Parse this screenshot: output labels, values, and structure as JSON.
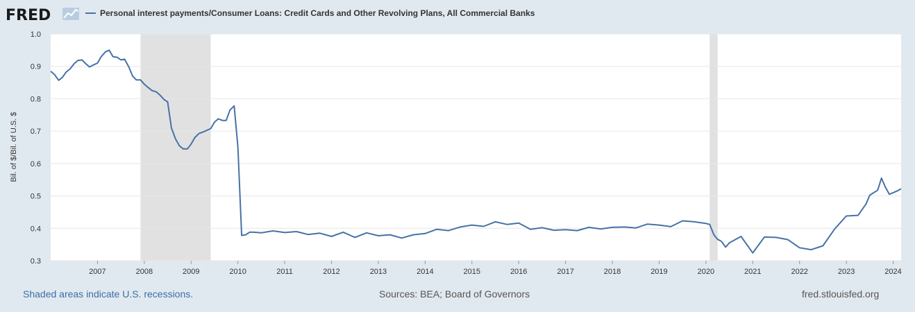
{
  "header": {
    "logo_text": "FRED",
    "legend_label": "Personal interest payments/Consumer Loans: Credit Cards and Other Revolving Plans, All Commercial Banks"
  },
  "footer": {
    "note": "Shaded areas indicate U.S. recessions.",
    "sources": "Sources: BEA; Board of Governors",
    "url": "fred.stlouisfed.org"
  },
  "colors": {
    "line": "#4572a7",
    "recession": "#e1e1e1",
    "background": "#e1e9f0",
    "plot": "#ffffff",
    "grid": "#e6e6e6"
  },
  "chart_data": {
    "type": "line",
    "ylabel": "Bil. of $/Bil. of U.S. $",
    "ylim": [
      0.3,
      1.0
    ],
    "yticks": [
      "0.3",
      "0.4",
      "0.5",
      "0.6",
      "0.7",
      "0.8",
      "0.9",
      "1.0"
    ],
    "xlim": [
      2006.0,
      2024.17
    ],
    "xticks": [
      "2007",
      "2008",
      "2009",
      "2010",
      "2011",
      "2012",
      "2013",
      "2014",
      "2015",
      "2016",
      "2017",
      "2018",
      "2019",
      "2020",
      "2021",
      "2022",
      "2023",
      "2024"
    ],
    "grid": true,
    "legend": "top-left",
    "recessions": [
      [
        2007.92,
        2009.42
      ],
      [
        2020.08,
        2020.25
      ]
    ],
    "series": [
      {
        "name": "Personal interest payments/Consumer Loans: Credit Cards and Other Revolving Plans, All Commercial Banks",
        "x": [
          2006.0,
          2006.08,
          2006.17,
          2006.25,
          2006.33,
          2006.42,
          2006.5,
          2006.58,
          2006.67,
          2006.75,
          2006.83,
          2006.92,
          2007.0,
          2007.08,
          2007.17,
          2007.25,
          2007.33,
          2007.42,
          2007.5,
          2007.58,
          2007.67,
          2007.75,
          2007.83,
          2007.92,
          2008.0,
          2008.08,
          2008.17,
          2008.25,
          2008.33,
          2008.42,
          2008.5,
          2008.58,
          2008.67,
          2008.75,
          2008.83,
          2008.92,
          2009.0,
          2009.08,
          2009.17,
          2009.25,
          2009.33,
          2009.42,
          2009.5,
          2009.58,
          2009.67,
          2009.75,
          2009.83,
          2009.92,
          2010.0,
          2010.08,
          2010.17,
          2010.25,
          2010.33,
          2010.5,
          2010.75,
          2011.0,
          2011.25,
          2011.5,
          2011.75,
          2012.0,
          2012.25,
          2012.5,
          2012.75,
          2013.0,
          2013.25,
          2013.5,
          2013.75,
          2014.0,
          2014.25,
          2014.5,
          2014.75,
          2015.0,
          2015.25,
          2015.5,
          2015.75,
          2016.0,
          2016.25,
          2016.5,
          2016.75,
          2017.0,
          2017.25,
          2017.5,
          2017.75,
          2018.0,
          2018.25,
          2018.5,
          2018.75,
          2019.0,
          2019.25,
          2019.5,
          2019.75,
          2020.0,
          2020.08,
          2020.17,
          2020.25,
          2020.33,
          2020.42,
          2020.5,
          2020.75,
          2021.0,
          2021.25,
          2021.5,
          2021.75,
          2022.0,
          2022.25,
          2022.5,
          2022.75,
          2023.0,
          2023.25,
          2023.42,
          2023.5,
          2023.67,
          2023.75,
          2023.83,
          2023.92,
          2024.0,
          2024.08,
          2024.17
        ],
        "values": [
          0.885,
          0.875,
          0.857,
          0.866,
          0.882,
          0.893,
          0.908,
          0.918,
          0.92,
          0.908,
          0.898,
          0.905,
          0.91,
          0.93,
          0.945,
          0.95,
          0.93,
          0.928,
          0.92,
          0.922,
          0.898,
          0.87,
          0.858,
          0.858,
          0.845,
          0.835,
          0.825,
          0.822,
          0.812,
          0.798,
          0.79,
          0.71,
          0.675,
          0.655,
          0.645,
          0.645,
          0.66,
          0.68,
          0.693,
          0.697,
          0.702,
          0.708,
          0.728,
          0.738,
          0.733,
          0.733,
          0.765,
          0.778,
          0.65,
          0.378,
          0.38,
          0.388,
          0.388,
          0.386,
          0.392,
          0.387,
          0.39,
          0.381,
          0.385,
          0.375,
          0.388,
          0.372,
          0.386,
          0.377,
          0.38,
          0.37,
          0.38,
          0.384,
          0.397,
          0.393,
          0.404,
          0.41,
          0.406,
          0.42,
          0.412,
          0.416,
          0.397,
          0.402,
          0.394,
          0.396,
          0.393,
          0.403,
          0.398,
          0.403,
          0.404,
          0.401,
          0.413,
          0.41,
          0.405,
          0.423,
          0.42,
          0.415,
          0.412,
          0.38,
          0.366,
          0.36,
          0.342,
          0.355,
          0.375,
          0.324,
          0.373,
          0.372,
          0.365,
          0.34,
          0.334,
          0.346,
          0.398,
          0.438,
          0.44,
          0.475,
          0.502,
          0.518,
          0.555,
          0.528,
          0.505,
          0.51,
          0.515,
          0.522
        ]
      }
    ]
  }
}
